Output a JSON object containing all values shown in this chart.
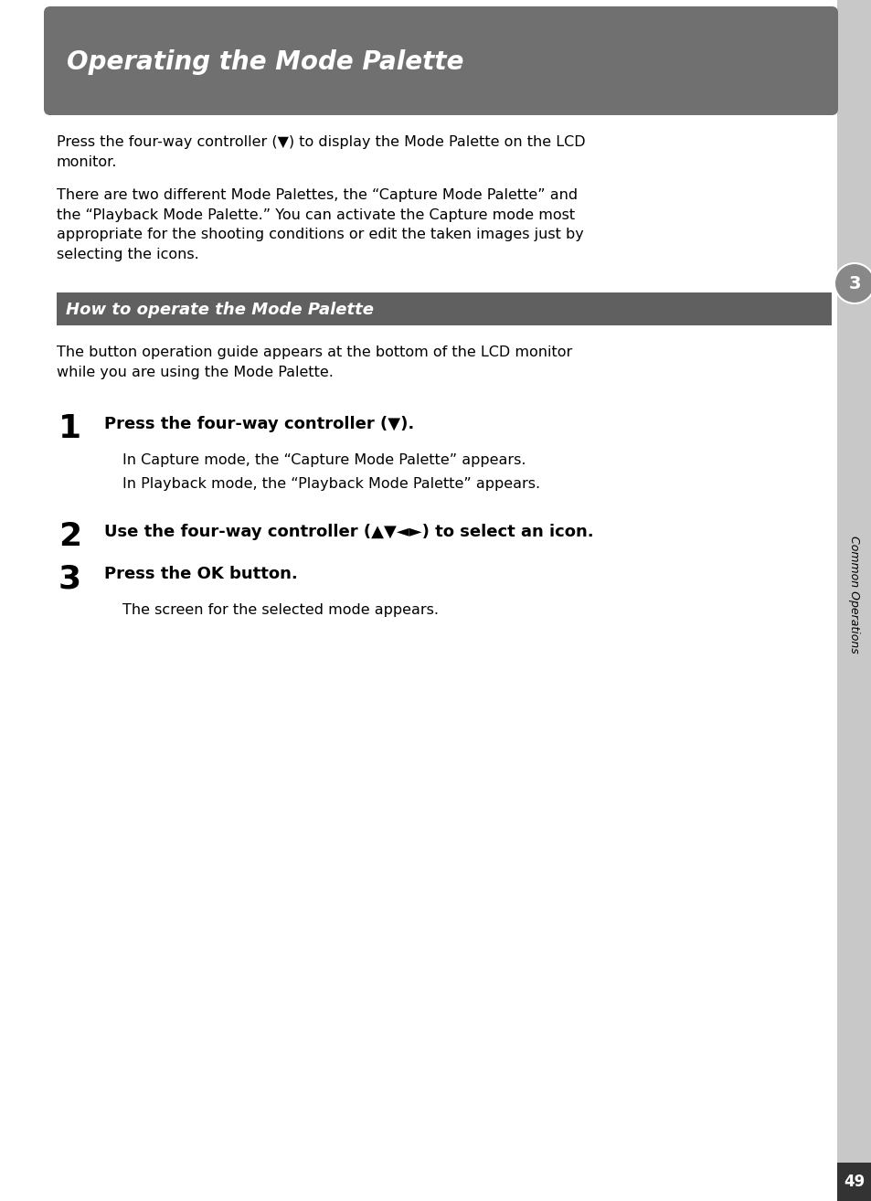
{
  "title": "Operating the Mode Palette",
  "title_bg_color": "#707070",
  "title_text_color": "#ffffff",
  "section_header": "How to operate the Mode Palette",
  "section_header_bg": "#606060",
  "section_header_text_color": "#ffffff",
  "body_text_color": "#000000",
  "bg_color": "#ffffff",
  "right_sidebar_color": "#c8c8c8",
  "right_tab_color": "#888888",
  "right_tab_circle_color": "#888888",
  "page_number": "49",
  "chapter_number": "3",
  "chapter_label": "Common Operations",
  "intro_para1": "Press the four-way controller (▼) to display the Mode Palette on the LCD\nmonitor.",
  "intro_para2": "There are two different Mode Palettes, the “Capture Mode Palette” and\nthe “Playback Mode Palette.” You can activate the Capture mode most\nappropriate for the shooting conditions or edit the taken images just by\nselecting the icons.",
  "guide_para": "The button operation guide appears at the bottom of the LCD monitor\nwhile you are using the Mode Palette.",
  "step1_num": "1",
  "step1_bold": "Press the four-way controller (▼).",
  "step1_sub1": "In Capture mode, the “Capture Mode Palette” appears.",
  "step1_sub2": "In Playback mode, the “Playback Mode Palette” appears.",
  "step2_num": "2",
  "step2_bold": "Use the four-way controller (▲▼◄►) to select an icon.",
  "step3_num": "3",
  "step3_bold": "Press the OK button.",
  "step3_sub": "The screen for the selected mode appears.",
  "page_bg_bottom_color": "#444444"
}
